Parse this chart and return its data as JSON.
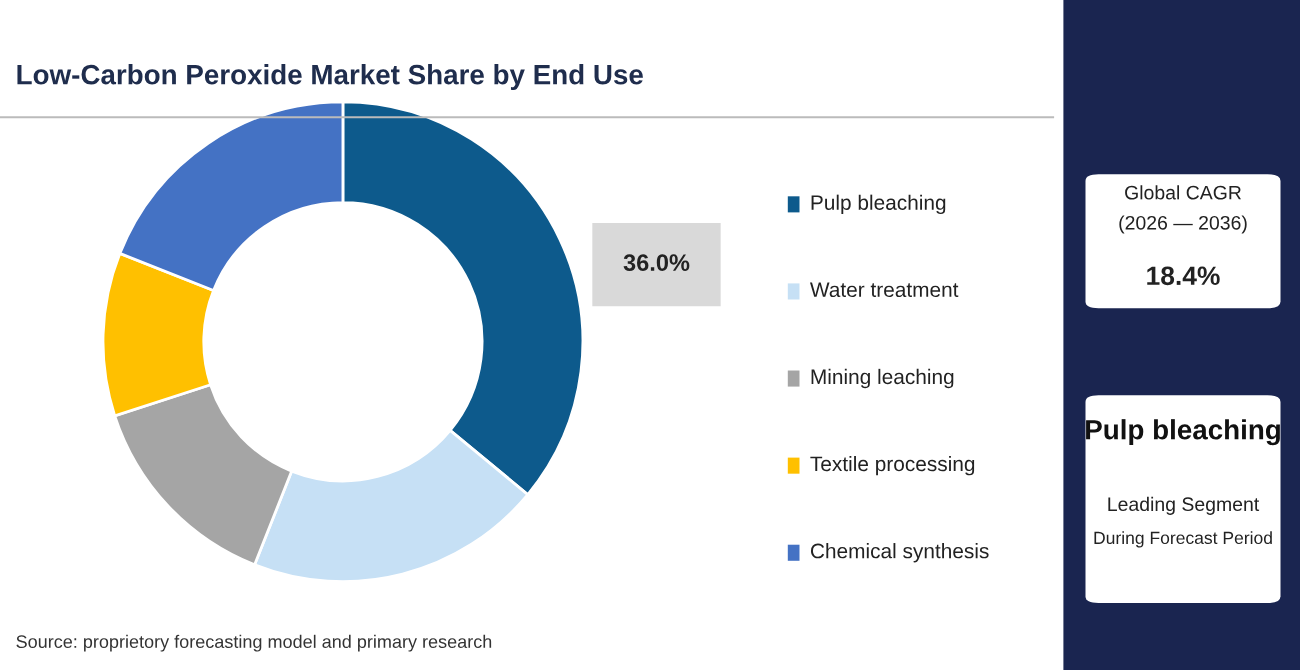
{
  "chart_data": {
    "type": "donut",
    "title": "Low-Carbon Peroxide Market Share by End Use",
    "categories": [
      "Pulp bleaching",
      "Water treatment",
      "Mining leaching",
      "Textile processing",
      "Chemical synthesis"
    ],
    "values": [
      36.0,
      20,
      14,
      11,
      19
    ],
    "colors": [
      "#0d5a8c",
      "#c6e0f5",
      "#a5a5a5",
      "#ffc000",
      "#4472c4"
    ],
    "value_labels": [
      "36.0%",
      null,
      null,
      null,
      null
    ],
    "legend": "right",
    "annotations": [
      "Source: proprietory forecasting model and primary research",
      "Global CAGR",
      "(2026 — 2036)",
      "18.4%",
      "Pulp bleaching",
      "Leading Segment",
      "During Forecast Period"
    ]
  }
}
